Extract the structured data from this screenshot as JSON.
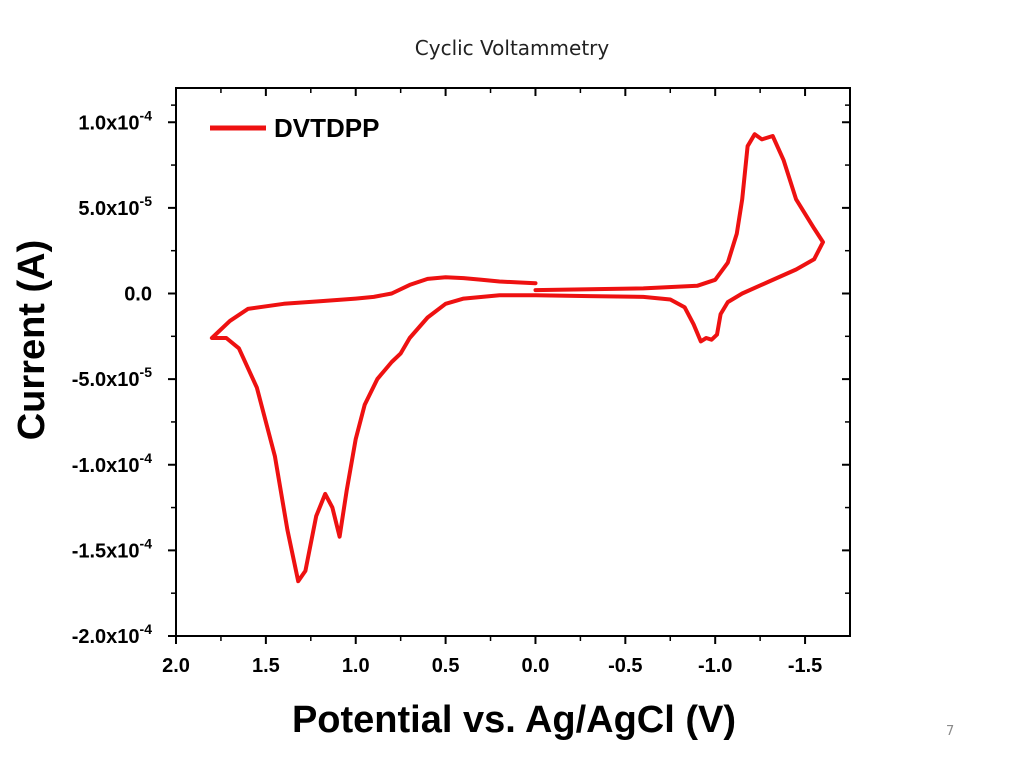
{
  "slide": {
    "title": "Cyclic Voltammetry",
    "page_number": "7"
  },
  "chart_data": {
    "type": "line",
    "title": "",
    "xlabel": "Potential vs. Ag/AgCl (V)",
    "ylabel": "Current (A)",
    "xlim": [
      2.0,
      -1.75
    ],
    "ylim": [
      -0.0002,
      0.00012
    ],
    "x_reversed": true,
    "x_ticks": [
      2.0,
      1.5,
      1.0,
      0.5,
      0.0,
      -0.5,
      -1.0,
      -1.5
    ],
    "x_tick_labels": [
      "2.0",
      "1.5",
      "1.0",
      "0.5",
      "0.0",
      "-0.5",
      "-1.0",
      "-1.5"
    ],
    "y_ticks": [
      -0.0002,
      -0.00015,
      -0.0001,
      -5e-05,
      0.0,
      5e-05,
      0.0001
    ],
    "y_tick_labels": [
      {
        "mantissa": "-2.0x10",
        "exp": "-4"
      },
      {
        "mantissa": "-1.5x10",
        "exp": "-4"
      },
      {
        "mantissa": "-1.0x10",
        "exp": "-4"
      },
      {
        "mantissa": "-5.0x10",
        "exp": "-5"
      },
      {
        "mantissa": "0.0",
        "exp": ""
      },
      {
        "mantissa": "5.0x10",
        "exp": "-5"
      },
      {
        "mantissa": "1.0x10",
        "exp": "-4"
      }
    ],
    "grid": false,
    "legend_position": "top-left",
    "series": [
      {
        "name": "DVTDPP",
        "color": "#ee1111",
        "points": [
          [
            0.0,
            6e-06
          ],
          [
            0.1,
            6.5e-06
          ],
          [
            0.2,
            7e-06
          ],
          [
            0.3,
            8e-06
          ],
          [
            0.4,
            9e-06
          ],
          [
            0.5,
            9.5e-06
          ],
          [
            0.6,
            8.5e-06
          ],
          [
            0.7,
            5e-06
          ],
          [
            0.8,
            0.0
          ],
          [
            0.9,
            -2e-06
          ],
          [
            1.0,
            -3e-06
          ],
          [
            1.2,
            -4.5e-06
          ],
          [
            1.4,
            -6e-06
          ],
          [
            1.6,
            -9e-06
          ],
          [
            1.7,
            -1.6e-05
          ],
          [
            1.8,
            -2.6e-05
          ],
          [
            1.72,
            -2.6e-05
          ],
          [
            1.65,
            -3.2e-05
          ],
          [
            1.55,
            -5.5e-05
          ],
          [
            1.45,
            -9.5e-05
          ],
          [
            1.38,
            -0.000138
          ],
          [
            1.32,
            -0.000168
          ],
          [
            1.28,
            -0.000162
          ],
          [
            1.22,
            -0.00013
          ],
          [
            1.17,
            -0.000117
          ],
          [
            1.13,
            -0.000125
          ],
          [
            1.09,
            -0.000142
          ],
          [
            1.05,
            -0.000115
          ],
          [
            1.0,
            -8.5e-05
          ],
          [
            0.95,
            -6.5e-05
          ],
          [
            0.88,
            -5e-05
          ],
          [
            0.8,
            -4e-05
          ],
          [
            0.75,
            -3.5e-05
          ],
          [
            0.7,
            -2.6e-05
          ],
          [
            0.6,
            -1.4e-05
          ],
          [
            0.5,
            -6e-06
          ],
          [
            0.4,
            -3e-06
          ],
          [
            0.2,
            -1e-06
          ],
          [
            0.0,
            -1e-06
          ],
          [
            -0.3,
            -1.5e-06
          ],
          [
            -0.6,
            -2e-06
          ],
          [
            -0.75,
            -3.5e-06
          ],
          [
            -0.83,
            -8e-06
          ],
          [
            -0.88,
            -1.8e-05
          ],
          [
            -0.92,
            -2.8e-05
          ],
          [
            -0.95,
            -2.6e-05
          ],
          [
            -0.98,
            -2.7e-05
          ],
          [
            -1.01,
            -2.4e-05
          ],
          [
            -1.03,
            -1.2e-05
          ],
          [
            -1.07,
            -5e-06
          ],
          [
            -1.15,
            0.0
          ],
          [
            -1.3,
            7e-06
          ],
          [
            -1.45,
            1.4e-05
          ],
          [
            -1.55,
            2e-05
          ],
          [
            -1.6,
            3e-05
          ],
          [
            -1.55,
            3.8e-05
          ],
          [
            -1.45,
            5.5e-05
          ],
          [
            -1.38,
            7.8e-05
          ],
          [
            -1.32,
            9.2e-05
          ],
          [
            -1.26,
            9e-05
          ],
          [
            -1.22,
            9.3e-05
          ],
          [
            -1.18,
            8.6e-05
          ],
          [
            -1.15,
            5.5e-05
          ],
          [
            -1.12,
            3.5e-05
          ],
          [
            -1.07,
            1.8e-05
          ],
          [
            -1.0,
            8e-06
          ],
          [
            -0.9,
            4.5e-06
          ],
          [
            -0.6,
            3e-06
          ],
          [
            -0.3,
            2.5e-06
          ],
          [
            0.0,
            2e-06
          ]
        ]
      }
    ]
  }
}
